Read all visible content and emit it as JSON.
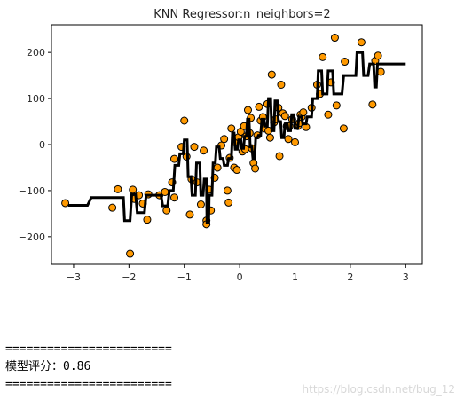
{
  "chart_data": {
    "type": "scatter",
    "title": "KNN Regressor:n_neighbors=2",
    "xlabel": "",
    "ylabel": "",
    "xlim": [
      -3.4,
      3.3
    ],
    "ylim": [
      -260,
      260
    ],
    "xticks": [
      -3,
      -2,
      -1,
      0,
      1,
      2,
      3
    ],
    "yticks": [
      -200,
      -100,
      0,
      100,
      200
    ],
    "x_tick_labels": [
      "−3",
      "−2",
      "−1",
      "0",
      "1",
      "2",
      "3"
    ],
    "y_tick_labels": [
      "−200",
      "−100",
      "0",
      "100",
      "200"
    ],
    "grid": false,
    "colors": {
      "points": "#ff9900",
      "point_edge": "#000000",
      "line": "#000000"
    },
    "series": [
      {
        "type": "scatter",
        "points": [
          [
            -3.15,
            -127
          ],
          [
            -2.3,
            -137
          ],
          [
            -2.2,
            -97
          ],
          [
            -1.98,
            -237
          ],
          [
            -1.93,
            -98
          ],
          [
            -1.9,
            -118
          ],
          [
            -1.82,
            -110
          ],
          [
            -1.75,
            -128
          ],
          [
            -1.67,
            -163
          ],
          [
            -1.65,
            -108
          ],
          [
            -1.45,
            -110
          ],
          [
            -1.35,
            -103
          ],
          [
            -1.32,
            -143
          ],
          [
            -1.22,
            -82
          ],
          [
            -1.18,
            -115
          ],
          [
            -1.18,
            -31
          ],
          [
            -1.05,
            -5
          ],
          [
            -1.0,
            52
          ],
          [
            -0.96,
            -26
          ],
          [
            -0.9,
            -152
          ],
          [
            -0.87,
            -75
          ],
          [
            -0.82,
            -5
          ],
          [
            -0.77,
            -82
          ],
          [
            -0.7,
            -130
          ],
          [
            -0.65,
            -13
          ],
          [
            -0.6,
            -165
          ],
          [
            -0.6,
            -173
          ],
          [
            -0.55,
            -98
          ],
          [
            -0.52,
            -143
          ],
          [
            -0.45,
            -72
          ],
          [
            -0.4,
            -50
          ],
          [
            -0.33,
            -2
          ],
          [
            -0.28,
            12
          ],
          [
            -0.22,
            -100
          ],
          [
            -0.2,
            -126
          ],
          [
            -0.18,
            -29
          ],
          [
            -0.15,
            35
          ],
          [
            -0.1,
            -50
          ],
          [
            -0.08,
            5
          ],
          [
            -0.05,
            -55
          ],
          [
            -0.02,
            16
          ],
          [
            0.02,
            28
          ],
          [
            0.05,
            -15
          ],
          [
            0.08,
            40
          ],
          [
            0.1,
            -10
          ],
          [
            0.12,
            18
          ],
          [
            0.15,
            75
          ],
          [
            0.18,
            25
          ],
          [
            0.2,
            58
          ],
          [
            0.22,
            -8
          ],
          [
            0.25,
            -40
          ],
          [
            0.28,
            -52
          ],
          [
            0.32,
            20
          ],
          [
            0.35,
            82
          ],
          [
            0.38,
            52
          ],
          [
            0.42,
            60
          ],
          [
            0.45,
            35
          ],
          [
            0.5,
            88
          ],
          [
            0.52,
            30
          ],
          [
            0.55,
            15
          ],
          [
            0.58,
            152
          ],
          [
            0.62,
            48
          ],
          [
            0.65,
            55
          ],
          [
            0.7,
            80
          ],
          [
            0.72,
            -25
          ],
          [
            0.75,
            130
          ],
          [
            0.78,
            68
          ],
          [
            0.82,
            62
          ],
          [
            0.85,
            40
          ],
          [
            0.88,
            12
          ],
          [
            0.9,
            40
          ],
          [
            0.95,
            55
          ],
          [
            1.0,
            5
          ],
          [
            1.05,
            40
          ],
          [
            1.08,
            47
          ],
          [
            1.1,
            65
          ],
          [
            1.12,
            60
          ],
          [
            1.15,
            70
          ],
          [
            1.2,
            38
          ],
          [
            1.3,
            80
          ],
          [
            1.4,
            130
          ],
          [
            1.45,
            110
          ],
          [
            1.5,
            190
          ],
          [
            1.6,
            65
          ],
          [
            1.65,
            135
          ],
          [
            1.72,
            232
          ],
          [
            1.75,
            85
          ],
          [
            1.88,
            35
          ],
          [
            1.9,
            180
          ],
          [
            2.2,
            222
          ],
          [
            2.4,
            87
          ],
          [
            2.45,
            182
          ],
          [
            2.5,
            193
          ],
          [
            2.55,
            158
          ]
        ]
      },
      {
        "type": "line",
        "points": [
          [
            -3.1,
            -132
          ],
          [
            -2.75,
            -132
          ],
          [
            -2.68,
            -115
          ],
          [
            -2.1,
            -115
          ],
          [
            -2.08,
            -165
          ],
          [
            -1.98,
            -165
          ],
          [
            -1.95,
            -108
          ],
          [
            -1.88,
            -108
          ],
          [
            -1.85,
            -148
          ],
          [
            -1.72,
            -148
          ],
          [
            -1.69,
            -110
          ],
          [
            -1.42,
            -110
          ],
          [
            -1.39,
            -133
          ],
          [
            -1.3,
            -133
          ],
          [
            -1.27,
            -100
          ],
          [
            -1.2,
            -100
          ],
          [
            -1.17,
            -45
          ],
          [
            -1.1,
            -45
          ],
          [
            -1.08,
            -20
          ],
          [
            -1.02,
            -20
          ],
          [
            -1.0,
            10
          ],
          [
            -0.95,
            10
          ],
          [
            -0.93,
            -70
          ],
          [
            -0.88,
            -70
          ],
          [
            -0.86,
            -110
          ],
          [
            -0.8,
            -110
          ],
          [
            -0.78,
            -40
          ],
          [
            -0.72,
            -40
          ],
          [
            -0.7,
            -110
          ],
          [
            -0.66,
            -110
          ],
          [
            -0.64,
            -75
          ],
          [
            -0.6,
            -75
          ],
          [
            -0.59,
            -170
          ],
          [
            -0.56,
            -170
          ],
          [
            -0.55,
            -110
          ],
          [
            -0.5,
            -110
          ],
          [
            -0.48,
            -40
          ],
          [
            -0.44,
            -40
          ],
          [
            -0.42,
            -5
          ],
          [
            -0.37,
            -5
          ],
          [
            -0.35,
            -30
          ],
          [
            -0.3,
            -30
          ],
          [
            -0.28,
            -45
          ],
          [
            -0.22,
            -45
          ],
          [
            -0.2,
            -30
          ],
          [
            -0.15,
            -30
          ],
          [
            -0.13,
            25
          ],
          [
            -0.1,
            25
          ],
          [
            -0.08,
            -10
          ],
          [
            -0.04,
            -10
          ],
          [
            -0.02,
            10
          ],
          [
            0.02,
            10
          ],
          [
            0.04,
            -8
          ],
          [
            0.07,
            -8
          ],
          [
            0.09,
            18
          ],
          [
            0.12,
            18
          ],
          [
            0.14,
            55
          ],
          [
            0.17,
            55
          ],
          [
            0.19,
            -5
          ],
          [
            0.22,
            -5
          ],
          [
            0.24,
            -30
          ],
          [
            0.27,
            -30
          ],
          [
            0.29,
            15
          ],
          [
            0.32,
            15
          ],
          [
            0.34,
            20
          ],
          [
            0.38,
            20
          ],
          [
            0.4,
            55
          ],
          [
            0.44,
            55
          ],
          [
            0.46,
            40
          ],
          [
            0.5,
            40
          ],
          [
            0.52,
            100
          ],
          [
            0.56,
            100
          ],
          [
            0.58,
            30
          ],
          [
            0.62,
            30
          ],
          [
            0.64,
            95
          ],
          [
            0.68,
            95
          ],
          [
            0.7,
            50
          ],
          [
            0.74,
            50
          ],
          [
            0.76,
            15
          ],
          [
            0.8,
            15
          ],
          [
            0.82,
            45
          ],
          [
            0.86,
            45
          ],
          [
            0.88,
            30
          ],
          [
            0.92,
            30
          ],
          [
            0.94,
            65
          ],
          [
            0.98,
            65
          ],
          [
            1.0,
            35
          ],
          [
            1.05,
            35
          ],
          [
            1.07,
            60
          ],
          [
            1.12,
            60
          ],
          [
            1.14,
            45
          ],
          [
            1.2,
            45
          ],
          [
            1.22,
            60
          ],
          [
            1.3,
            60
          ],
          [
            1.32,
            100
          ],
          [
            1.4,
            100
          ],
          [
            1.42,
            160
          ],
          [
            1.48,
            160
          ],
          [
            1.5,
            110
          ],
          [
            1.58,
            110
          ],
          [
            1.6,
            160
          ],
          [
            1.68,
            160
          ],
          [
            1.7,
            110
          ],
          [
            1.85,
            110
          ],
          [
            1.88,
            150
          ],
          [
            2.1,
            150
          ],
          [
            2.12,
            200
          ],
          [
            2.22,
            200
          ],
          [
            2.24,
            150
          ],
          [
            2.32,
            150
          ],
          [
            2.35,
            175
          ],
          [
            2.42,
            175
          ],
          [
            2.44,
            125
          ],
          [
            2.47,
            125
          ],
          [
            2.49,
            175
          ],
          [
            3.0,
            175
          ]
        ]
      }
    ]
  },
  "console": {
    "separator_top": "========================",
    "score_line": "模型评分：0.86",
    "separator_bottom": "========================"
  },
  "watermark": "https://blog.csdn.net/bug_12"
}
